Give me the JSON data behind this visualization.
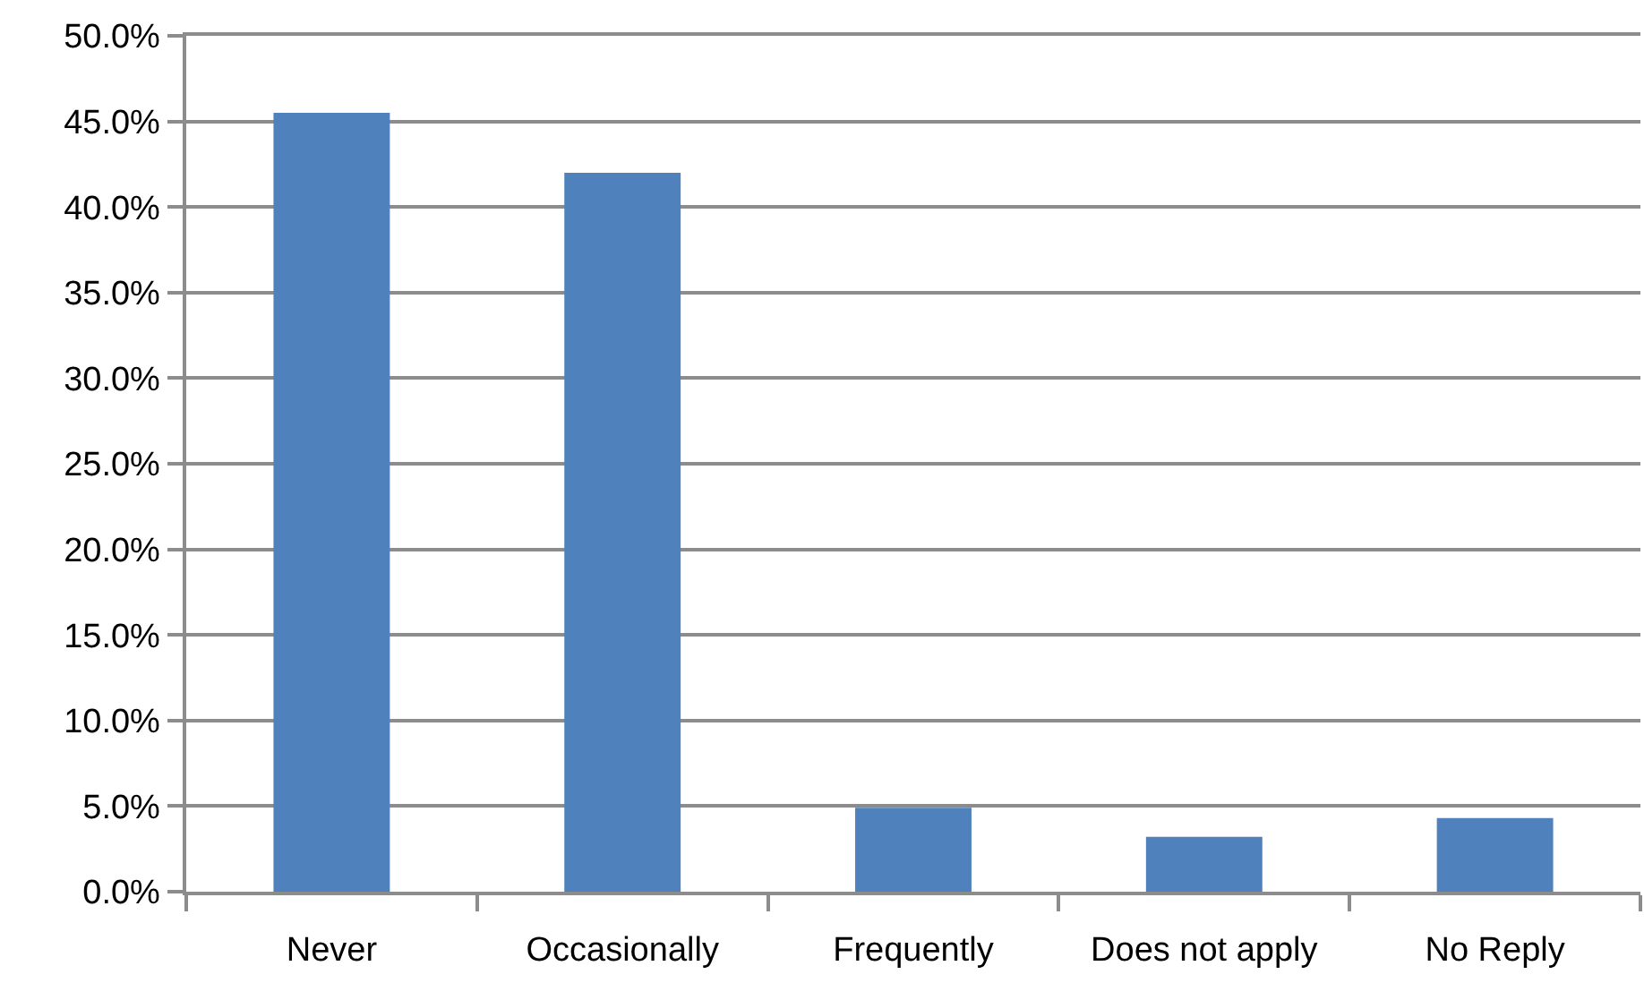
{
  "chart_data": {
    "type": "bar",
    "categories": [
      "Never",
      "Occasionally",
      "Frequently",
      "Does not apply",
      "No Reply"
    ],
    "values": [
      45.5,
      42.0,
      4.9,
      3.2,
      4.3
    ],
    "color": "#4f81bd",
    "ylim": [
      0,
      50
    ],
    "yticks": [
      {
        "value": 0,
        "label": "0.0%"
      },
      {
        "value": 5,
        "label": "5.0%"
      },
      {
        "value": 10,
        "label": "10.0%"
      },
      {
        "value": 15,
        "label": "15.0%"
      },
      {
        "value": 20,
        "label": "20.0%"
      },
      {
        "value": 25,
        "label": "25.0%"
      },
      {
        "value": 30,
        "label": "30.0%"
      },
      {
        "value": 35,
        "label": "35.0%"
      },
      {
        "value": 40,
        "label": "40.0%"
      },
      {
        "value": 45,
        "label": "45.0%"
      },
      {
        "value": 50,
        "label": "50.0%"
      }
    ],
    "grid": "y"
  }
}
